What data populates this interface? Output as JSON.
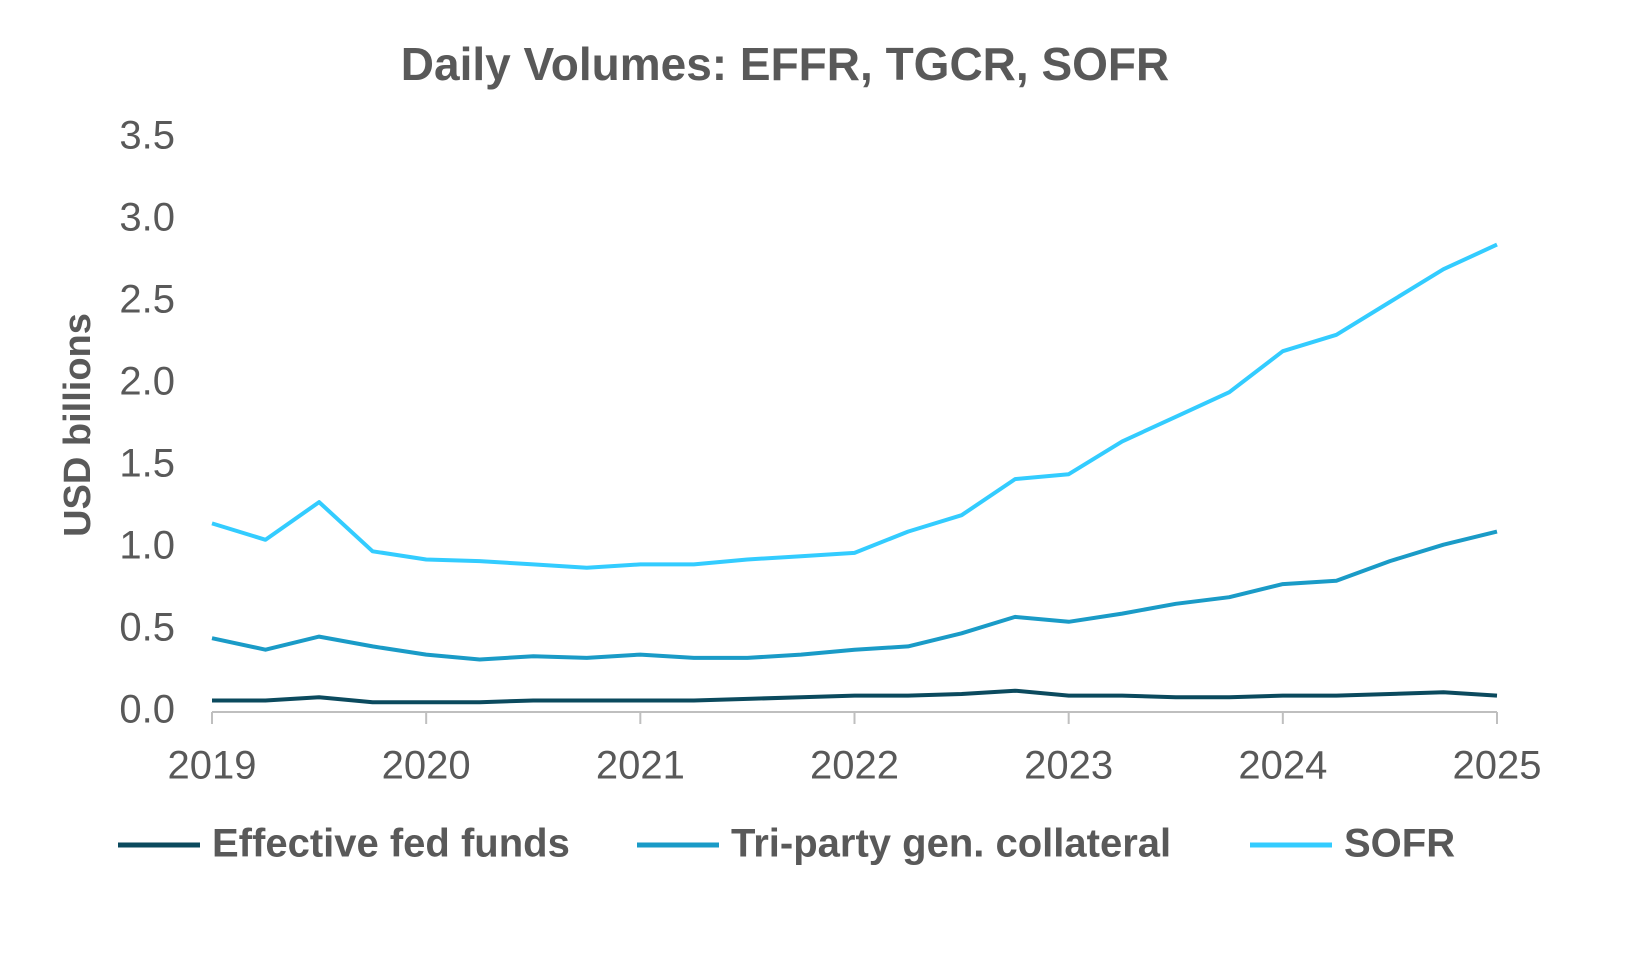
{
  "chart_data": {
    "type": "line",
    "title": "Daily Volumes: EFFR, TGCR, SOFR",
    "y_label": "USD billions",
    "x": [
      2019,
      2019.25,
      2019.5,
      2019.75,
      2020,
      2020.25,
      2020.5,
      2020.75,
      2021,
      2021.25,
      2021.5,
      2021.75,
      2022,
      2022.25,
      2022.5,
      2022.75,
      2023,
      2023.25,
      2023.5,
      2023.75,
      2024,
      2024.25,
      2024.5,
      2024.75,
      2025
    ],
    "series": [
      {
        "name": "Effective fed funds",
        "color": "#0b4a5e",
        "values": [
          0.07,
          0.07,
          0.09,
          0.06,
          0.06,
          0.06,
          0.07,
          0.07,
          0.07,
          0.07,
          0.08,
          0.09,
          0.1,
          0.1,
          0.11,
          0.13,
          0.1,
          0.1,
          0.09,
          0.09,
          0.1,
          0.1,
          0.11,
          0.12,
          0.1
        ]
      },
      {
        "name": "Tri-party gen. collateral",
        "color": "#1a9bc7",
        "values": [
          0.45,
          0.38,
          0.46,
          0.4,
          0.35,
          0.32,
          0.34,
          0.33,
          0.35,
          0.33,
          0.33,
          0.35,
          0.38,
          0.4,
          0.48,
          0.58,
          0.55,
          0.6,
          0.66,
          0.7,
          0.78,
          0.8,
          0.92,
          1.02,
          1.1
        ]
      },
      {
        "name": "SOFR",
        "color": "#33ccff",
        "values": [
          1.15,
          1.05,
          1.28,
          0.98,
          0.93,
          0.92,
          0.9,
          0.88,
          0.9,
          0.9,
          0.93,
          0.95,
          0.97,
          1.1,
          1.2,
          1.42,
          1.45,
          1.65,
          1.8,
          1.95,
          2.2,
          2.3,
          2.5,
          2.7,
          2.85
        ]
      }
    ],
    "xlim": [
      2019,
      2025
    ],
    "xticks": [
      2019,
      2020,
      2021,
      2022,
      2023,
      2024,
      2025
    ],
    "ylim": [
      0,
      3.5
    ],
    "yticks": [
      {
        "value": 0,
        "label": "0.0"
      },
      0.5,
      {
        "value": 1,
        "label": "1.0"
      },
      1.5,
      {
        "value": 2,
        "label": "2.0"
      },
      2.5,
      {
        "value": 3,
        "label": "3.0"
      },
      3.5
    ],
    "grid": false,
    "legend": "bottom"
  }
}
